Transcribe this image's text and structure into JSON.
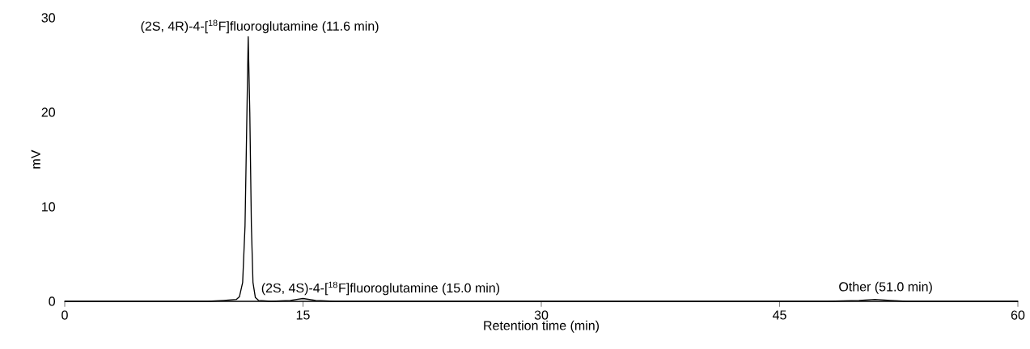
{
  "chart_data": {
    "type": "line",
    "xlabel": "Retention time (min)",
    "ylabel": "mV",
    "xlim": [
      0,
      60
    ],
    "ylim": [
      0,
      30
    ],
    "xticks": [
      0,
      15,
      30,
      45,
      60
    ],
    "yticks": [
      0,
      10,
      20,
      30
    ],
    "x": [
      0,
      5,
      9,
      10,
      10.8,
      11.0,
      11.2,
      11.35,
      11.45,
      11.55,
      11.65,
      11.75,
      11.85,
      12.0,
      12.2,
      13,
      14.2,
      14.6,
      15.0,
      15.4,
      15.8,
      17,
      25,
      35,
      45,
      48,
      50,
      51.0,
      52,
      53,
      60
    ],
    "series": [
      {
        "color": "#000000",
        "values": [
          0.0,
          0.0,
          0.0,
          0.1,
          0.2,
          0.5,
          2.0,
          8,
          18,
          28.0,
          20,
          8,
          2,
          0.4,
          0.1,
          0.0,
          0.1,
          0.2,
          0.3,
          0.2,
          0.1,
          0.0,
          0.0,
          0.0,
          0.0,
          0.0,
          0.1,
          0.2,
          0.1,
          0.0,
          0.0
        ]
      }
    ],
    "annotations": [
      {
        "text": "(2S, 4R)-4-[$^{18}$F]fluoroglutamine (11.6 min)",
        "x": 11.6,
        "y": 28.0
      },
      {
        "text": "(2S, 4S)-4-[$^{18}$F]fluoroglutamine (15.0 min)",
        "x": 15.0,
        "y": 0.3
      },
      {
        "text": "Other (51.0 min)",
        "x": 51.0,
        "y": 0.2
      }
    ]
  }
}
